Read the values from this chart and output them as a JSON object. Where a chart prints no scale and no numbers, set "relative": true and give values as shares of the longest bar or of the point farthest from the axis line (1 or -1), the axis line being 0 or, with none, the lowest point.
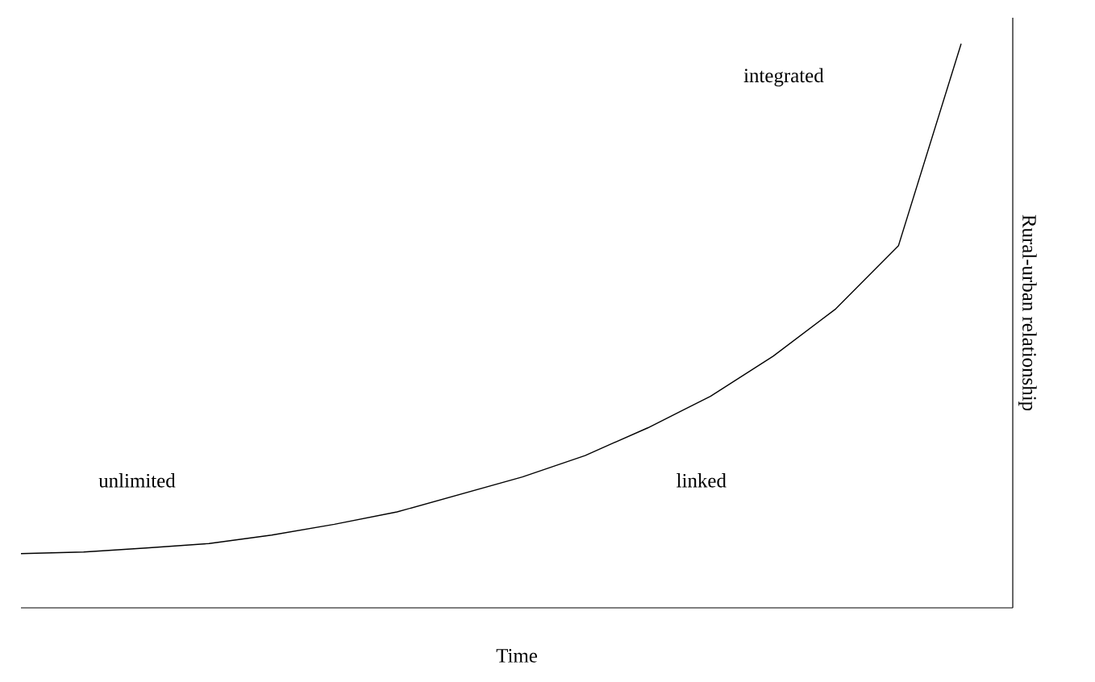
{
  "chart_data": {
    "type": "line",
    "relative": true,
    "xlabel": "Time",
    "ylabel": "Rural-urban relationship",
    "color": "#000000",
    "categories": [
      null,
      null,
      null,
      null,
      null,
      null,
      null,
      null,
      null,
      null,
      null,
      null,
      null,
      null,
      null,
      null
    ],
    "values": [
      0.096,
      0.099,
      0.106,
      0.114,
      0.129,
      0.148,
      0.17,
      0.201,
      0.232,
      0.27,
      0.319,
      0.375,
      0.446,
      0.53,
      0.642,
      1
    ],
    "annotations": [
      "unlimited",
      "linked",
      "integrated"
    ]
  }
}
